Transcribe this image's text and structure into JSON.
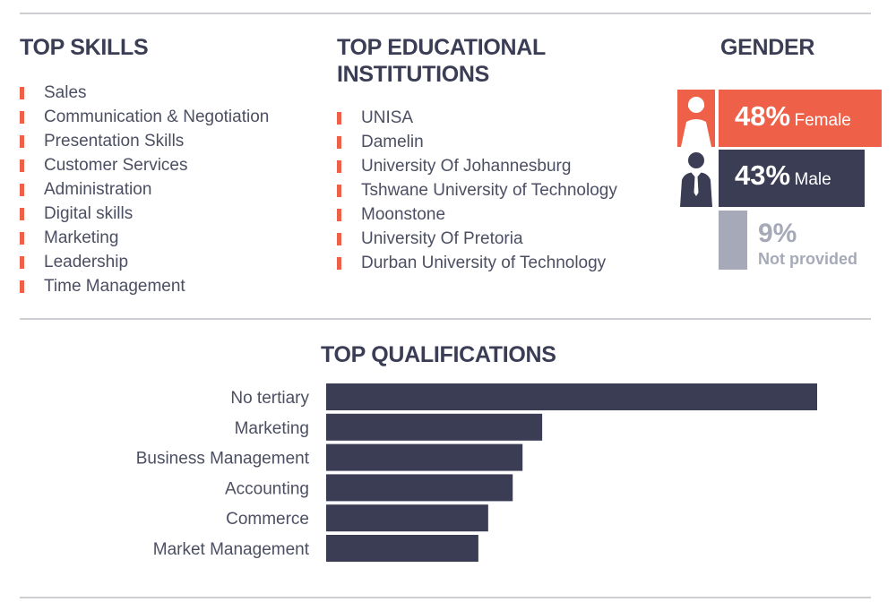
{
  "skills": {
    "title": "TOP SKILLS",
    "items": [
      "Sales",
      "Communication & Negotiation",
      "Presentation Skills",
      "Customer Services",
      "Administration",
      "Digital skills",
      "Marketing",
      "Leadership",
      "Time Management"
    ]
  },
  "institutions": {
    "title_line1": "TOP EDUCATIONAL",
    "title_line2": "INSTITUTIONS",
    "items": [
      "UNISA",
      "Damelin",
      "University Of Johannesburg",
      "Tshwane University of Technology",
      "Moonstone",
      "University Of Pretoria",
      "Durban University of Technology"
    ]
  },
  "gender": {
    "title": "GENDER",
    "female": {
      "percent": 48,
      "percent_label": "48%",
      "label": "Female",
      "color": "#ef6048",
      "icon": "female-person-icon"
    },
    "male": {
      "percent": 43,
      "percent_label": "43%",
      "label": "Male",
      "color": "#3a3d54",
      "icon": "male-person-icon"
    },
    "not_provided": {
      "percent": 9,
      "percent_label": "9%",
      "label": "Not provided",
      "color": "#a6a9b8"
    }
  },
  "colors": {
    "accent": "#ef6048",
    "navy": "#3a3d54",
    "text": "#4c4f62",
    "rule": "#cfcfd3"
  },
  "chart_data": {
    "type": "bar",
    "orientation": "horizontal",
    "title": "TOP QUALIFICATIONS",
    "categories": [
      "No tertiary",
      "Marketing",
      "Business Management",
      "Accounting",
      "Commerce",
      "Market Management"
    ],
    "values": [
      100,
      44,
      40,
      38,
      33,
      31
    ],
    "xlim": [
      0,
      100
    ],
    "grid": false,
    "legend": "none",
    "bar_color": "#3a3d54"
  }
}
